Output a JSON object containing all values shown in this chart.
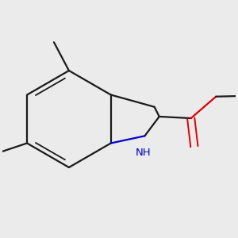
{
  "background_color": "#ebebeb",
  "bond_color": "#1a1a1a",
  "nitrogen_color": "#0000cc",
  "oxygen_color": "#dd0000",
  "line_width": 1.6,
  "font_size": 9.5
}
